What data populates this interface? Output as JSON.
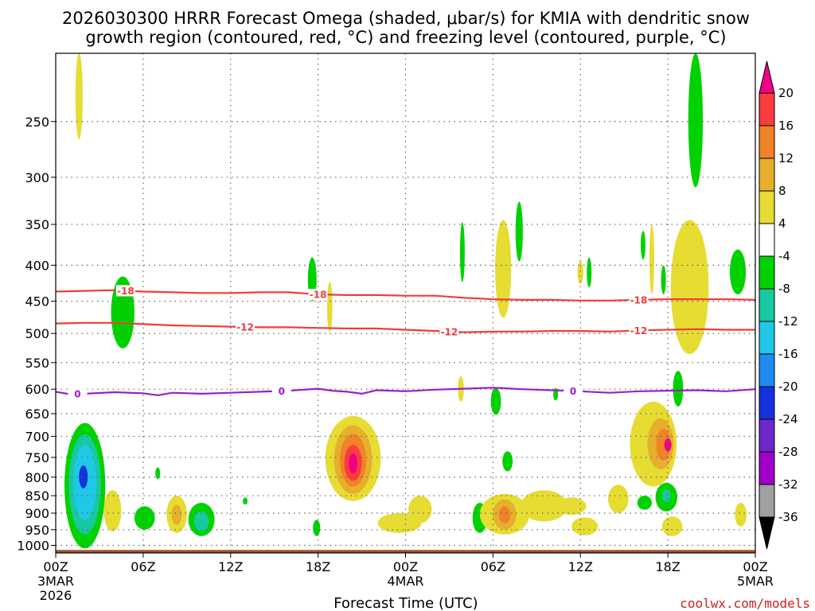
{
  "title_line1": "2026030300 HRRR Forecast Omega (shaded, μbar/s) for KMIA with dendritic snow",
  "title_line2": "growth region (contoured, red, °C) and freezing level (contoured, purple, °C)",
  "xlabel": "Forecast Time (UTC)",
  "credit": "coolwx.com/models",
  "chart_data": {
    "type": "heatmap",
    "x_range_hours": [
      0,
      48
    ],
    "y_range_hpa": [
      1025,
      200
    ],
    "y_scale": "log",
    "grid": true,
    "x_ticks": [
      {
        "hour": 0,
        "label": "00Z",
        "date": "3MAR",
        "year": "2026"
      },
      {
        "hour": 6,
        "label": "06Z"
      },
      {
        "hour": 12,
        "label": "12Z"
      },
      {
        "hour": 18,
        "label": "18Z"
      },
      {
        "hour": 24,
        "label": "00Z",
        "date": "4MAR"
      },
      {
        "hour": 30,
        "label": "06Z"
      },
      {
        "hour": 36,
        "label": "12Z"
      },
      {
        "hour": 42,
        "label": "18Z"
      },
      {
        "hour": 48,
        "label": "00Z",
        "date": "5MAR"
      }
    ],
    "y_ticks": [
      250,
      300,
      350,
      400,
      450,
      500,
      550,
      600,
      650,
      700,
      750,
      800,
      850,
      900,
      950,
      1000
    ],
    "colorbar": {
      "bins": [
        {
          "lo": -36,
          "hi": -32,
          "color": "#a0a0a0"
        },
        {
          "lo": -32,
          "hi": -28,
          "color": "#a000c8"
        },
        {
          "lo": -28,
          "hi": -24,
          "color": "#6e28c8"
        },
        {
          "lo": -24,
          "hi": -20,
          "color": "#1432dc"
        },
        {
          "lo": -20,
          "hi": -16,
          "color": "#1e8cf0"
        },
        {
          "lo": -16,
          "hi": -12,
          "color": "#1ec8e6"
        },
        {
          "lo": -12,
          "hi": -8,
          "color": "#18c8a0"
        },
        {
          "lo": -8,
          "hi": -4,
          "color": "#00d200"
        },
        {
          "lo": -4,
          "hi": 4,
          "color": "#ffffff"
        },
        {
          "lo": 4,
          "hi": 8,
          "color": "#e6dc32"
        },
        {
          "lo": 8,
          "hi": 12,
          "color": "#e6af2d"
        },
        {
          "lo": 12,
          "hi": 16,
          "color": "#f08228"
        },
        {
          "lo": 16,
          "hi": 20,
          "color": "#fa3c3c"
        }
      ],
      "over_color": "#f00082",
      "under_color": "#000000",
      "labels": [
        20,
        16,
        12,
        8,
        4,
        -4,
        -8,
        -12,
        -16,
        -20,
        -24,
        -28,
        -32,
        -36
      ]
    },
    "omega_areas": [
      {
        "hour": 1.6,
        "p": 230,
        "w": 0.25,
        "h": 70,
        "value": 4
      },
      {
        "hour": 2.0,
        "p": 840,
        "w": 1.4,
        "h": 340,
        "value": -8
      },
      {
        "hour": 2.0,
        "p": 830,
        "w": 1.1,
        "h": 270,
        "value": -12
      },
      {
        "hour": 2.0,
        "p": 820,
        "w": 0.8,
        "h": 200,
        "value": -16
      },
      {
        "hour": 1.9,
        "p": 800,
        "w": 0.3,
        "h": 60,
        "value": -24
      },
      {
        "hour": 3.9,
        "p": 895,
        "w": 0.6,
        "h": 120,
        "value": 4
      },
      {
        "hour": 4.6,
        "p": 470,
        "w": 0.8,
        "h": 110,
        "value": -8
      },
      {
        "hour": 6.1,
        "p": 915,
        "w": 0.7,
        "h": 70,
        "value": -8
      },
      {
        "hour": 7.0,
        "p": 790,
        "w": 0.15,
        "h": 30,
        "value": -8
      },
      {
        "hour": 8.3,
        "p": 905,
        "w": 0.7,
        "h": 110,
        "value": 4
      },
      {
        "hour": 8.3,
        "p": 905,
        "w": 0.35,
        "h": 60,
        "value": 8
      },
      {
        "hour": 10.0,
        "p": 920,
        "w": 0.9,
        "h": 100,
        "value": -8
      },
      {
        "hour": 10.0,
        "p": 925,
        "w": 0.5,
        "h": 60,
        "value": -12
      },
      {
        "hour": 13.0,
        "p": 865,
        "w": 0.15,
        "h": 20,
        "value": -8
      },
      {
        "hour": 17.6,
        "p": 420,
        "w": 0.3,
        "h": 60,
        "value": -8
      },
      {
        "hour": 17.9,
        "p": 945,
        "w": 0.25,
        "h": 50,
        "value": -8
      },
      {
        "hour": 18.8,
        "p": 460,
        "w": 0.18,
        "h": 75,
        "value": 4
      },
      {
        "hour": 20.4,
        "p": 760,
        "w": 1.9,
        "h": 210,
        "value": 4
      },
      {
        "hour": 20.4,
        "p": 760,
        "w": 1.3,
        "h": 170,
        "value": 8
      },
      {
        "hour": 20.4,
        "p": 760,
        "w": 0.9,
        "h": 130,
        "value": 12
      },
      {
        "hour": 20.4,
        "p": 765,
        "w": 0.6,
        "h": 90,
        "value": 16
      },
      {
        "hour": 20.4,
        "p": 765,
        "w": 0.3,
        "h": 50,
        "value": 20
      },
      {
        "hour": 23.6,
        "p": 930,
        "w": 1.5,
        "h": 60,
        "value": 4
      },
      {
        "hour": 25.0,
        "p": 890,
        "w": 0.8,
        "h": 80,
        "value": 4
      },
      {
        "hour": 27.8,
        "p": 600,
        "w": 0.2,
        "h": 50,
        "value": 4
      },
      {
        "hour": 27.9,
        "p": 385,
        "w": 0.15,
        "h": 75,
        "value": -8
      },
      {
        "hour": 29.1,
        "p": 915,
        "w": 0.5,
        "h": 90,
        "value": -8
      },
      {
        "hour": 30.2,
        "p": 625,
        "w": 0.35,
        "h": 55,
        "value": -8
      },
      {
        "hour": 30.7,
        "p": 410,
        "w": 0.55,
        "h": 130,
        "value": 4
      },
      {
        "hour": 31.8,
        "p": 360,
        "w": 0.25,
        "h": 70,
        "value": -8
      },
      {
        "hour": 31.0,
        "p": 760,
        "w": 0.35,
        "h": 50,
        "value": -8
      },
      {
        "hour": 30.8,
        "p": 905,
        "w": 1.7,
        "h": 120,
        "value": 4
      },
      {
        "hour": 30.8,
        "p": 905,
        "w": 0.8,
        "h": 90,
        "value": 8
      },
      {
        "hour": 30.8,
        "p": 905,
        "w": 0.4,
        "h": 50,
        "value": 12
      },
      {
        "hour": 33.5,
        "p": 880,
        "w": 1.6,
        "h": 90,
        "value": 4
      },
      {
        "hour": 35.4,
        "p": 880,
        "w": 1.0,
        "h": 50,
        "value": 4
      },
      {
        "hour": 36.3,
        "p": 940,
        "w": 0.9,
        "h": 55,
        "value": 4
      },
      {
        "hour": 38.6,
        "p": 860,
        "w": 0.7,
        "h": 80,
        "value": 4
      },
      {
        "hour": 36.0,
        "p": 410,
        "w": 0.2,
        "h": 30,
        "value": 4
      },
      {
        "hour": 36.6,
        "p": 410,
        "w": 0.15,
        "h": 40,
        "value": -8
      },
      {
        "hour": 34.3,
        "p": 610,
        "w": 0.15,
        "h": 25,
        "value": -8
      },
      {
        "hour": 41.0,
        "p": 725,
        "w": 1.6,
        "h": 200,
        "value": 4
      },
      {
        "hour": 41.5,
        "p": 720,
        "w": 0.9,
        "h": 120,
        "value": 8
      },
      {
        "hour": 41.7,
        "p": 720,
        "w": 0.5,
        "h": 75,
        "value": 12
      },
      {
        "hour": 42.0,
        "p": 720,
        "w": 0.25,
        "h": 30,
        "value": 20
      },
      {
        "hour": 40.4,
        "p": 870,
        "w": 0.5,
        "h": 40,
        "value": -8
      },
      {
        "hour": 41.9,
        "p": 855,
        "w": 0.75,
        "h": 80,
        "value": -8
      },
      {
        "hour": 41.9,
        "p": 850,
        "w": 0.3,
        "h": 35,
        "value": -12
      },
      {
        "hour": 42.3,
        "p": 940,
        "w": 0.7,
        "h": 60,
        "value": 4
      },
      {
        "hour": 40.3,
        "p": 375,
        "w": 0.12,
        "h": 35,
        "value": -8
      },
      {
        "hour": 40.9,
        "p": 395,
        "w": 0.15,
        "h": 90,
        "value": 4
      },
      {
        "hour": 41.7,
        "p": 420,
        "w": 0.12,
        "h": 40,
        "value": -8
      },
      {
        "hour": 42.7,
        "p": 600,
        "w": 0.35,
        "h": 70,
        "value": -8
      },
      {
        "hour": 43.5,
        "p": 440,
        "w": 1.3,
        "h": 190,
        "value": 4
      },
      {
        "hour": 43.9,
        "p": 250,
        "w": 0.5,
        "h": 120,
        "value": -8
      },
      {
        "hour": 47.0,
        "p": 905,
        "w": 0.4,
        "h": 70,
        "value": 4
      },
      {
        "hour": 46.8,
        "p": 410,
        "w": 0.55,
        "h": 60,
        "value": -8
      }
    ],
    "contours": [
      {
        "name": "-18",
        "color": "#f03c3c",
        "points": [
          [
            0,
            436
          ],
          [
            2,
            435
          ],
          [
            4,
            434
          ],
          [
            6,
            436
          ],
          [
            8,
            437
          ],
          [
            10,
            438
          ],
          [
            12,
            438
          ],
          [
            14,
            437
          ],
          [
            16,
            437
          ],
          [
            18,
            440
          ],
          [
            20,
            441
          ],
          [
            22,
            441
          ],
          [
            24,
            442
          ],
          [
            26,
            442
          ],
          [
            28,
            445
          ],
          [
            30,
            447
          ],
          [
            32,
            448
          ],
          [
            34,
            448
          ],
          [
            36,
            449
          ],
          [
            38,
            449
          ],
          [
            40,
            448
          ],
          [
            42,
            447
          ],
          [
            44,
            447
          ],
          [
            46,
            447
          ],
          [
            48,
            448
          ]
        ],
        "labels": [
          {
            "hour": 4.8,
            "text": "-18"
          },
          {
            "hour": 18.0,
            "text": "-18"
          },
          {
            "hour": 40.0,
            "text": "-18"
          }
        ]
      },
      {
        "name": "-12",
        "color": "#f03c3c",
        "points": [
          [
            0,
            484
          ],
          [
            2,
            483
          ],
          [
            4,
            483
          ],
          [
            6,
            485
          ],
          [
            8,
            487
          ],
          [
            10,
            488
          ],
          [
            12,
            489
          ],
          [
            14,
            490
          ],
          [
            16,
            490
          ],
          [
            18,
            491
          ],
          [
            20,
            492
          ],
          [
            22,
            492
          ],
          [
            24,
            494
          ],
          [
            26,
            496
          ],
          [
            28,
            498
          ],
          [
            30,
            497
          ],
          [
            32,
            497
          ],
          [
            34,
            496
          ],
          [
            36,
            496
          ],
          [
            38,
            497
          ],
          [
            40,
            495
          ],
          [
            42,
            494
          ],
          [
            44,
            493
          ],
          [
            46,
            494
          ],
          [
            48,
            494
          ]
        ],
        "labels": [
          {
            "hour": 13.0,
            "text": "-12"
          },
          {
            "hour": 27.0,
            "text": "-12"
          },
          {
            "hour": 40.0,
            "text": "-12"
          }
        ]
      },
      {
        "name": "0",
        "color": "#9b1ec8",
        "points": [
          [
            0,
            605
          ],
          [
            1,
            610
          ],
          [
            2,
            609
          ],
          [
            4,
            606
          ],
          [
            6,
            608
          ],
          [
            7,
            612
          ],
          [
            8,
            607
          ],
          [
            10,
            609
          ],
          [
            12,
            607
          ],
          [
            14,
            605
          ],
          [
            16,
            603
          ],
          [
            18,
            599
          ],
          [
            19,
            603
          ],
          [
            20,
            605
          ],
          [
            21,
            609
          ],
          [
            22,
            602
          ],
          [
            24,
            604
          ],
          [
            26,
            601
          ],
          [
            28,
            599
          ],
          [
            30,
            597
          ],
          [
            32,
            600
          ],
          [
            34,
            602
          ],
          [
            36,
            604
          ],
          [
            38,
            607
          ],
          [
            40,
            604
          ],
          [
            42,
            603
          ],
          [
            44,
            602
          ],
          [
            46,
            604
          ],
          [
            48,
            600
          ]
        ],
        "labels": [
          {
            "hour": 1.5,
            "text": "0"
          },
          {
            "hour": 15.5,
            "text": "0"
          },
          {
            "hour": 35.5,
            "text": "0"
          }
        ]
      }
    ],
    "ground": {
      "from_hpa": 1015,
      "color": "#a5522a"
    }
  }
}
